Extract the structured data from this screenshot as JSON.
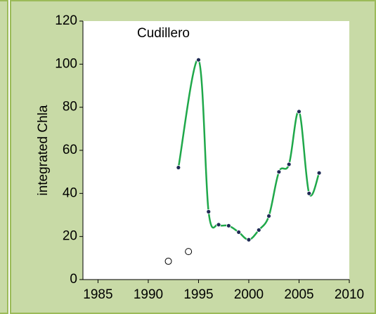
{
  "chart_data": {
    "type": "scatter",
    "annotation": "Cudillero",
    "y_label": "integrated Chla",
    "xlim": [
      1983.5,
      2010
    ],
    "xticks": [
      1985,
      1990,
      1995,
      2000,
      2005,
      2010
    ],
    "ylim": [
      0,
      120
    ],
    "yticks": [
      0,
      20,
      40,
      60,
      80,
      100,
      120
    ],
    "series": [
      {
        "style": "smooth-line",
        "color": "#1fa84a",
        "marker_color": "#1f2a55",
        "x": [
          1993,
          1995,
          1996,
          1997,
          1998,
          1999,
          2000,
          2001,
          2002,
          2003,
          2004,
          2005,
          2006,
          2007
        ],
        "values": [
          52,
          102,
          31.5,
          25.5,
          25,
          22,
          18.5,
          23,
          29.5,
          50,
          53.5,
          78,
          40,
          49.5
        ]
      },
      {
        "style": "open-marker",
        "color": "#000000",
        "x": [
          1992,
          1994
        ],
        "values": [
          8.5,
          13
        ]
      }
    ]
  }
}
